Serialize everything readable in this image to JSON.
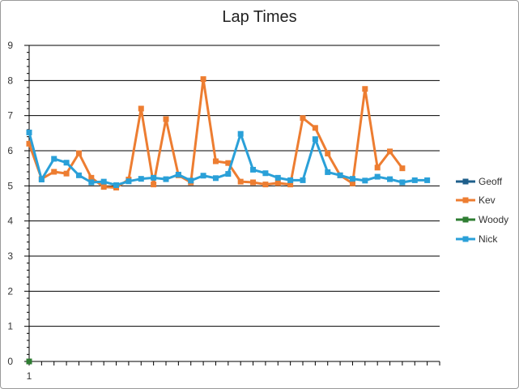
{
  "chart_data": {
    "type": "line",
    "title": "Lap Times",
    "ylim": [
      0,
      9
    ],
    "y_ticks": [
      0,
      1,
      2,
      3,
      4,
      5,
      6,
      7,
      8,
      9
    ],
    "x_labels": [
      "1"
    ],
    "x_count": 33,
    "grid": true,
    "legend_placement": "right",
    "series": [
      {
        "name": "Geoff",
        "color": "#1f5f8b",
        "values": []
      },
      {
        "name": "Kev",
        "color": "#ed7d31",
        "values": [
          6.2,
          5.2,
          5.4,
          5.35,
          5.93,
          5.23,
          4.97,
          4.95,
          5.18,
          7.2,
          5.04,
          6.9,
          5.3,
          5.1,
          8.04,
          5.7,
          5.65,
          5.12,
          5.1,
          5.04,
          5.08,
          5.04,
          6.93,
          6.65,
          5.92,
          5.3,
          5.07,
          7.76,
          5.52,
          5.98,
          5.5
        ]
      },
      {
        "name": "Woody",
        "color": "#2e7d32",
        "values": [
          0
        ]
      },
      {
        "name": "Nick",
        "color": "#2aa0d8",
        "values": [
          6.52,
          5.18,
          5.77,
          5.66,
          5.3,
          5.1,
          5.12,
          5.02,
          5.13,
          5.2,
          5.23,
          5.19,
          5.32,
          5.15,
          5.29,
          5.22,
          5.34,
          6.48,
          5.46,
          5.36,
          5.23,
          5.16,
          5.16,
          6.33,
          5.39,
          5.3,
          5.2,
          5.15,
          5.26,
          5.19,
          5.1,
          5.16,
          5.16
        ]
      }
    ]
  }
}
